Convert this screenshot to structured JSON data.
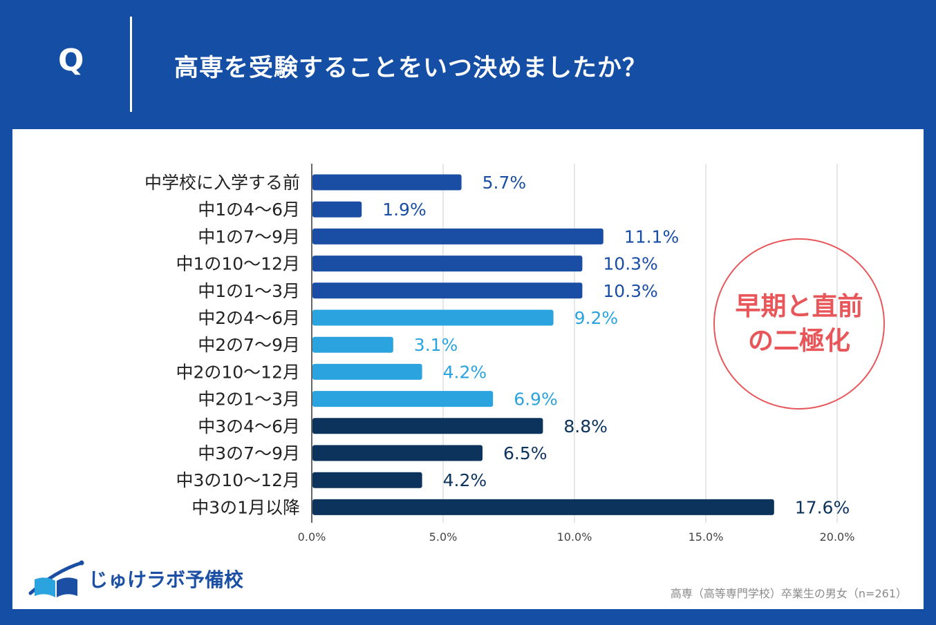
{
  "header": {
    "q_letter": "Q",
    "question": "高専を受験することをいつ決めましたか？"
  },
  "callout": {
    "line1": "早期と直前",
    "line2": "の二極化"
  },
  "logo": {
    "text": "じゅけラボ予備校"
  },
  "note": "高専（高等専門学校）卒業生の男女（n=261）",
  "colors": {
    "background": "#154ea5",
    "grade1": "#1a4ea5",
    "grade2": "#2aa3de",
    "grade3": "#0b335c",
    "callout": "#e8565a"
  },
  "chart_data": {
    "type": "bar",
    "orientation": "horizontal",
    "categories": [
      "中学校に入学する前",
      "中1の4〜6月",
      "中1の7〜9月",
      "中1の10〜12月",
      "中1の1〜3月",
      "中2の4〜6月",
      "中2の7〜9月",
      "中2の10〜12月",
      "中2の1〜3月",
      "中3の4〜6月",
      "中3の7〜9月",
      "中3の10〜12月",
      "中3の1月以降"
    ],
    "values": [
      5.7,
      1.9,
      11.1,
      10.3,
      10.3,
      9.2,
      3.1,
      4.2,
      6.9,
      8.8,
      6.5,
      4.2,
      17.6
    ],
    "value_labels": [
      "5.7%",
      "1.9%",
      "11.1%",
      "10.3%",
      "10.3%",
      "9.2%",
      "3.1%",
      "4.2%",
      "6.9%",
      "8.8%",
      "6.5%",
      "4.2%",
      "17.6%"
    ],
    "bar_color_groups": [
      "grade1",
      "grade1",
      "grade1",
      "grade1",
      "grade1",
      "grade2",
      "grade2",
      "grade2",
      "grade2",
      "grade3",
      "grade3",
      "grade3",
      "grade3"
    ],
    "xlim": [
      0,
      20
    ],
    "xticks": [
      0,
      5,
      10,
      15,
      20
    ],
    "xtick_labels": [
      "0.0%",
      "5.0%",
      "10.0%",
      "15.0%",
      "20.0%"
    ],
    "grid": true,
    "title": "",
    "xlabel": "",
    "ylabel": ""
  }
}
